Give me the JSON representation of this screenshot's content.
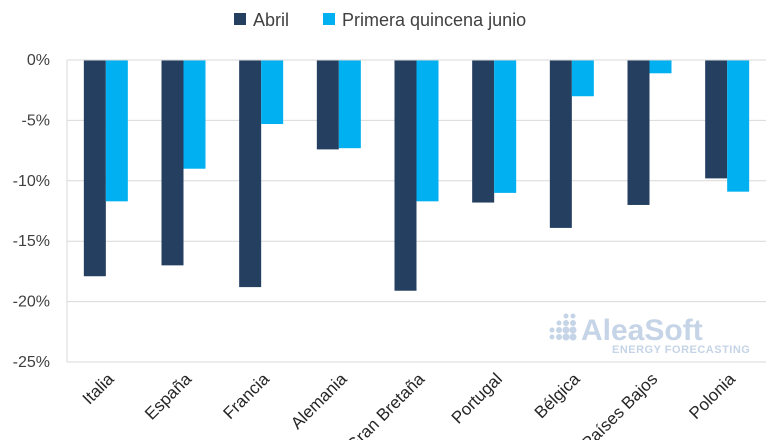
{
  "chart_data": {
    "type": "bar",
    "title": "",
    "xlabel": "",
    "ylabel": "",
    "ylim": [
      -25,
      0
    ],
    "yticks": [
      0,
      -5,
      -10,
      -15,
      -20,
      -25
    ],
    "ytick_labels": [
      "0%",
      "-5%",
      "-10%",
      "-15%",
      "-20%",
      "-25%"
    ],
    "grid": true,
    "legend_position": "top",
    "categories": [
      "Italia",
      "España",
      "Francia",
      "Alemania",
      "Gran Bretaña",
      "Portugal",
      "Bélgica",
      "Países Bajos",
      "Polonia"
    ],
    "series": [
      {
        "name": "Abril",
        "color": "#243f60",
        "values": [
          -17.9,
          -17.0,
          -18.8,
          -7.4,
          -19.1,
          -11.8,
          -13.9,
          -12.0,
          -9.8
        ]
      },
      {
        "name": "Primera quincena junio",
        "color": "#00b0f0",
        "values": [
          -11.7,
          -9.0,
          -5.3,
          -7.3,
          -11.7,
          -11.0,
          -3.0,
          -1.1,
          -10.9
        ]
      }
    ]
  },
  "watermark": {
    "brand": "AleaSoft",
    "tagline": "ENERGY FORECASTING"
  }
}
